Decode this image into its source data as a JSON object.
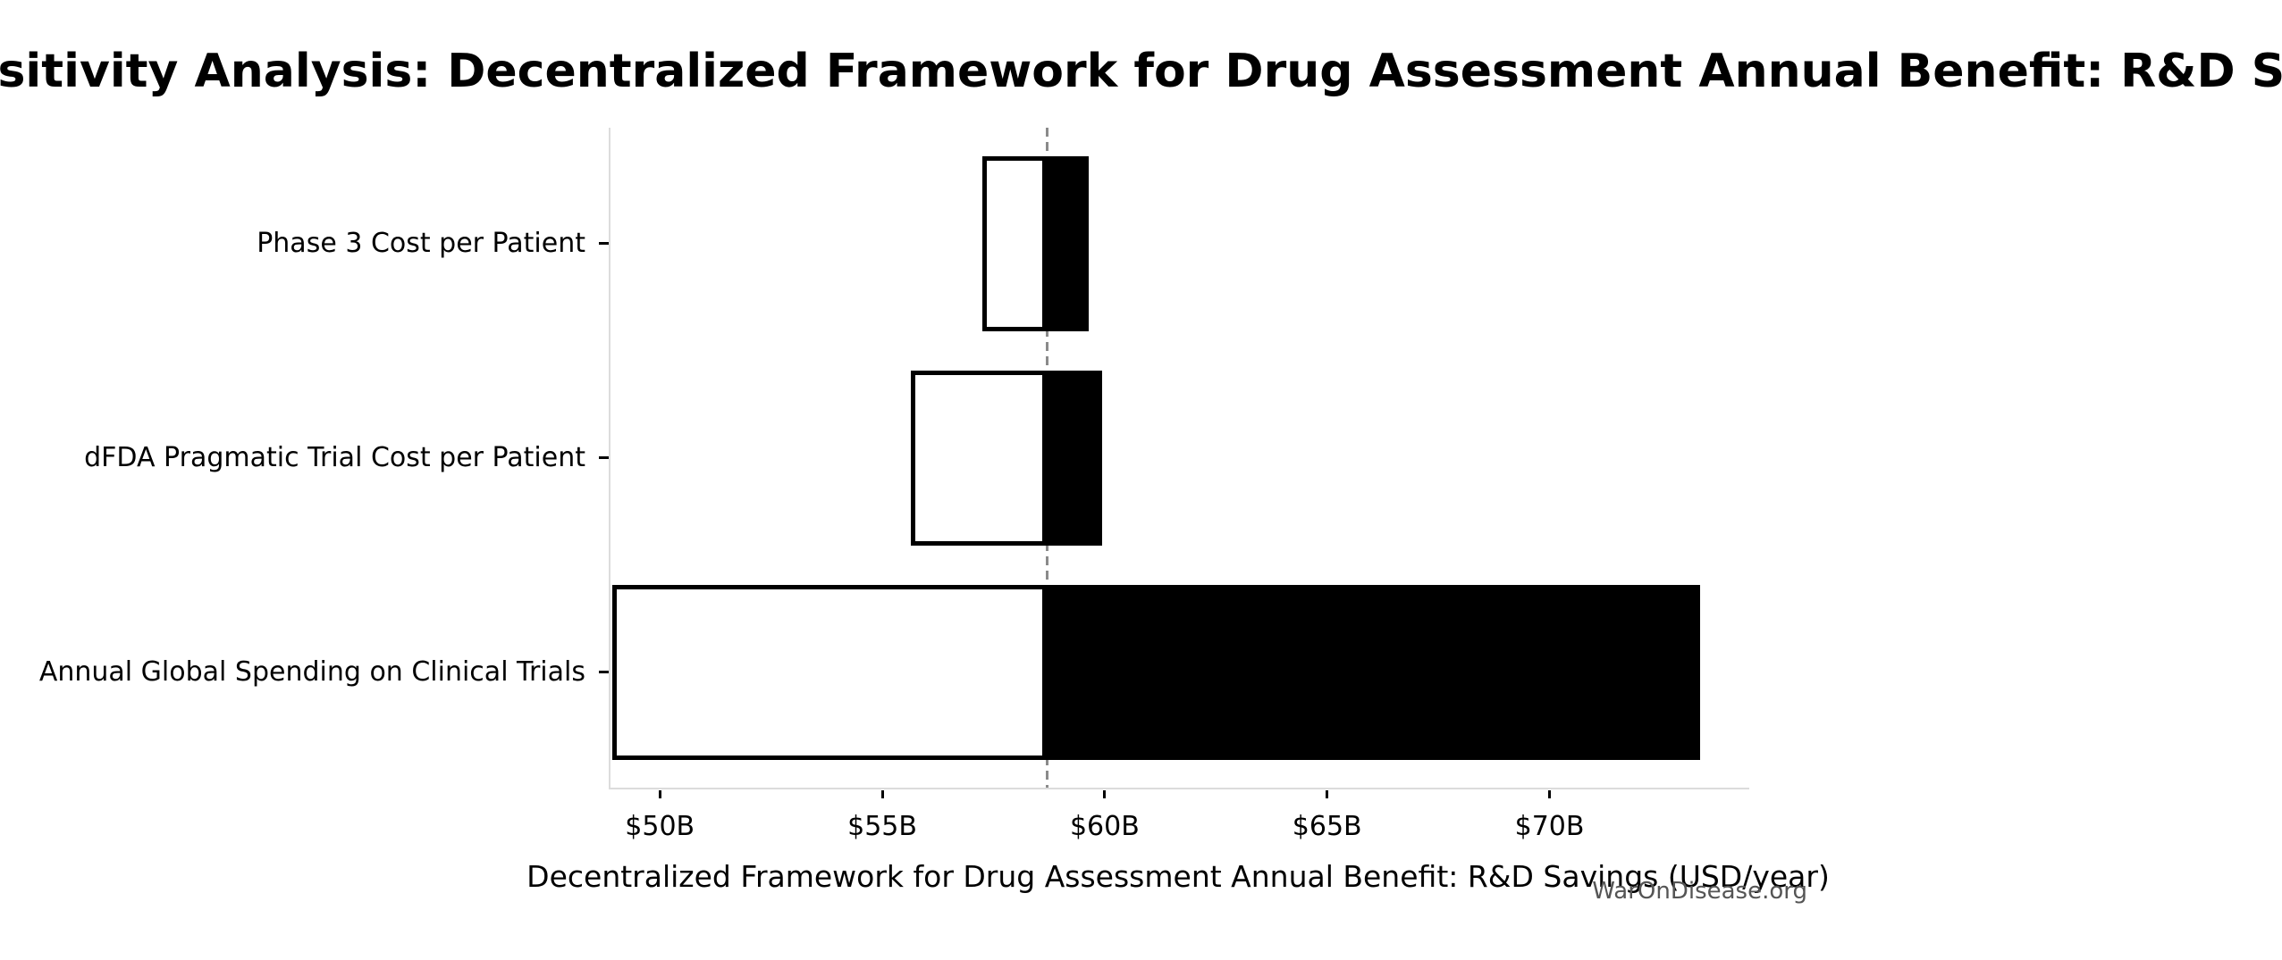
{
  "figure": {
    "watermark": "WarOnDisease.org",
    "background_color": "#ffffff"
  },
  "chart_data": {
    "type": "bar",
    "subtype": "tornado-sensitivity",
    "orientation": "horizontal",
    "title": "Sensitivity Analysis: Decentralized Framework for Drug Assessment Annual Benefit: R&D Savings",
    "xlabel": "Decentralized Framework for Drug Assessment Annual Benefit: R&D Savings (USD/year)",
    "ylabel": "",
    "unit": "USD billions per year",
    "grid": false,
    "legend": null,
    "xlim": [
      48.85,
      74.45
    ],
    "baseline_value": 58.66,
    "x_ticks": [
      {
        "value": 50,
        "label": "$50B"
      },
      {
        "value": 55,
        "label": "$55B"
      },
      {
        "value": 60,
        "label": "$60B"
      },
      {
        "value": 65,
        "label": "$65B"
      },
      {
        "value": 70,
        "label": "$70B"
      }
    ],
    "categories": [
      "Phase 3 Cost per Patient",
      "dFDA Pragmatic Trial Cost per Patient",
      "Annual Global Spending on Clinical Trials"
    ],
    "bars": [
      {
        "category": "Phase 3 Cost per Patient",
        "low": 57.2,
        "high": 59.6
      },
      {
        "category": "dFDA Pragmatic Trial Cost per Patient",
        "low": 55.6,
        "high": 59.9
      },
      {
        "category": "Annual Global Spending on Clinical Trials",
        "low": 48.9,
        "high": 73.35
      }
    ],
    "series": [
      {
        "name": "Low",
        "values": [
          57.2,
          55.6,
          48.9
        ],
        "fill": "#ffffff"
      },
      {
        "name": "High",
        "values": [
          59.6,
          59.9,
          73.35
        ],
        "fill": "#000000"
      }
    ],
    "style": {
      "low_fill": "#ffffff",
      "high_fill": "#000000",
      "bar_border_color": "#000000",
      "baseline_color": "#8a8a8a",
      "spine_color": "#dcdcdc",
      "tick_color": "#000000",
      "text_color": "#000000",
      "watermark_color": "#555555"
    }
  }
}
